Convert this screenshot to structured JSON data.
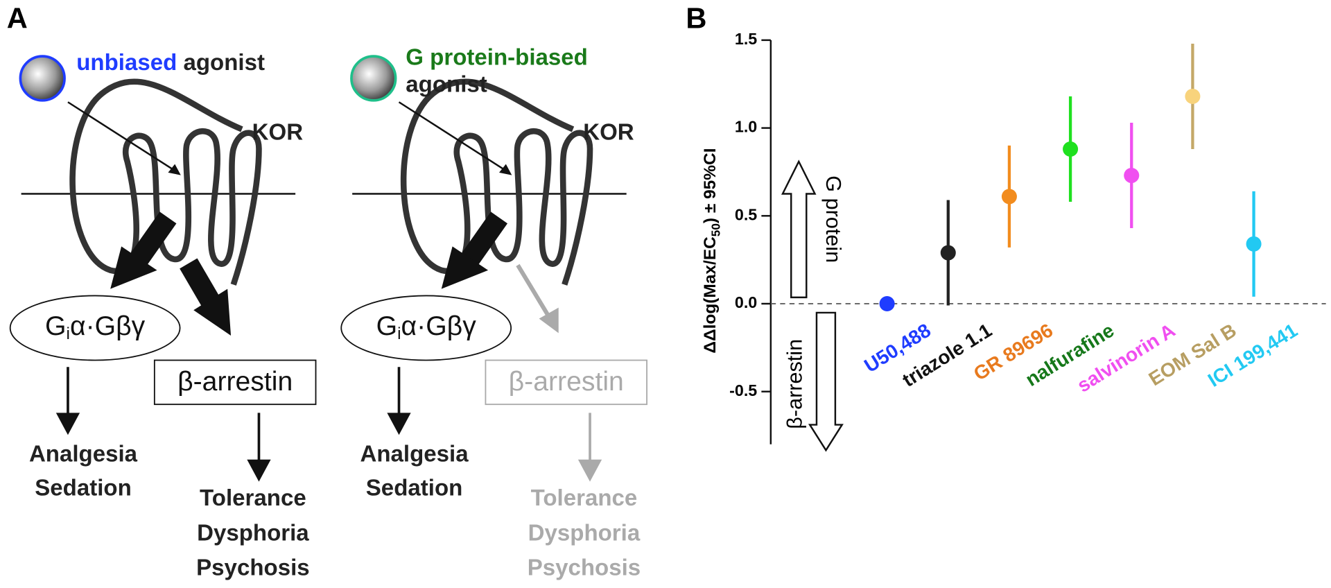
{
  "panel_a": {
    "label": "A",
    "left": {
      "ligand": [
        "unbiased",
        " agonist"
      ],
      "kor": "KOR",
      "g_protein": {
        "pre": "G",
        "sub": "i",
        "post": "α·Gβγ"
      },
      "arrestin": "β-arrestin",
      "outcome1": [
        "Analgesia",
        "Sedation"
      ],
      "outcome2": [
        "Tolerance",
        "Dysphoria",
        "Psychosis"
      ]
    },
    "right": {
      "ligand": [
        "G protein-biased",
        "agonist"
      ],
      "kor": "KOR",
      "g_protein": {
        "pre": "G",
        "sub": "i",
        "post": "α·Gβγ"
      },
      "arrestin": "β-arrestin",
      "outcome1": [
        "Analgesia",
        "Sedation"
      ],
      "outcome2": [
        "Tolerance",
        "Dysphoria",
        "Psychosis"
      ]
    }
  },
  "chart_data": {
    "type": "errorbar",
    "panel_label": "B",
    "y_label": {
      "main": "ΔΔlog(Max/EC",
      "sub": "50",
      "end": ") ± 95%CI"
    },
    "annotations": [
      "G protein",
      "β-arrestin"
    ],
    "categories": [
      "U50,488",
      "triazole 1.1",
      "GR 89696",
      "nalfurafine",
      "salvinorin A",
      "EOM Sal B",
      "ICI 199,441"
    ],
    "values": [
      0,
      0.29,
      0.61,
      0.88,
      0.73,
      1.18,
      0.34
    ],
    "errors": [
      0,
      0.3,
      0.29,
      0.3,
      0.3,
      0.3,
      0.3
    ],
    "colors": [
      "#1f3cff",
      "#222222",
      "#f28c1e",
      "#1fe01f",
      "#f04ff0",
      "#f8d37c",
      "#22c9f2"
    ],
    "error_colors": [
      "#1f3cff",
      "#222222",
      "#f28c1e",
      "#1fe01f",
      "#f04ff0",
      "#c4a868",
      "#22c9f2"
    ],
    "label_colors": [
      "#1f3cff",
      "#111111",
      "#e87a1e",
      "#16781a",
      "#f04ff0",
      "#b79e62",
      "#22c9f2"
    ],
    "ylim": [
      -0.8,
      1.5
    ],
    "yticks": [
      {
        "value": -0.5,
        "label": "-0.5"
      },
      {
        "value": 0,
        "label": "0.0"
      },
      0.5,
      {
        "value": 1,
        "label": "1.0"
      },
      1.5
    ]
  }
}
